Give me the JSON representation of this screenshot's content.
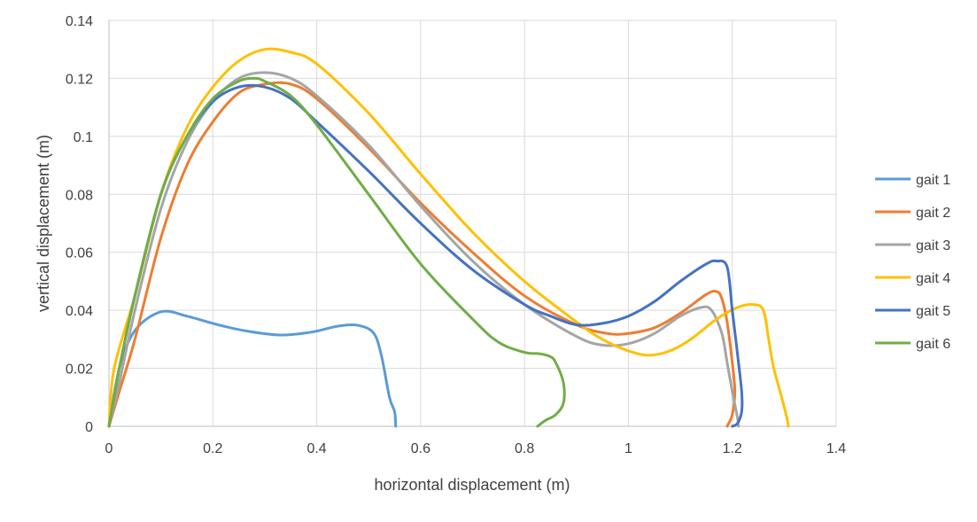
{
  "chart_data": {
    "type": "line",
    "title": "",
    "xlabel": "horizontal displacement (m)",
    "ylabel": "vertical displacement (m)",
    "xlim": [
      0,
      1.4
    ],
    "ylim": [
      0,
      0.14
    ],
    "xticks": [
      "0",
      "0.2",
      "0.4",
      "0.6",
      "0.8",
      "1",
      "1.2",
      "1.4"
    ],
    "yticks": [
      "0",
      "0.02",
      "0.04",
      "0.06",
      "0.08",
      "0.1",
      "0.12",
      "0.14"
    ],
    "grid": true,
    "legend_position": "right",
    "series": [
      {
        "name": "gait 1",
        "color": "#5b9bd5",
        "points": [
          [
            0,
            0
          ],
          [
            0.02,
            0.02
          ],
          [
            0.05,
            0.033
          ],
          [
            0.1,
            0.0395
          ],
          [
            0.15,
            0.038
          ],
          [
            0.2,
            0.0355
          ],
          [
            0.26,
            0.033
          ],
          [
            0.33,
            0.0315
          ],
          [
            0.39,
            0.0325
          ],
          [
            0.44,
            0.0345
          ],
          [
            0.48,
            0.0348
          ],
          [
            0.51,
            0.032
          ],
          [
            0.525,
            0.024
          ],
          [
            0.54,
            0.01
          ],
          [
            0.55,
            0.005
          ],
          [
            0.552,
            0
          ]
        ]
      },
      {
        "name": "gait 2",
        "color": "#ed7d31",
        "points": [
          [
            0,
            0
          ],
          [
            0.02,
            0.012
          ],
          [
            0.05,
            0.03
          ],
          [
            0.1,
            0.065
          ],
          [
            0.15,
            0.09
          ],
          [
            0.2,
            0.105
          ],
          [
            0.25,
            0.115
          ],
          [
            0.3,
            0.118
          ],
          [
            0.35,
            0.118
          ],
          [
            0.4,
            0.113
          ],
          [
            0.5,
            0.096
          ],
          [
            0.6,
            0.077
          ],
          [
            0.7,
            0.06
          ],
          [
            0.8,
            0.045
          ],
          [
            0.9,
            0.035
          ],
          [
            0.96,
            0.032
          ],
          [
            1.0,
            0.032
          ],
          [
            1.05,
            0.034
          ],
          [
            1.1,
            0.039
          ],
          [
            1.15,
            0.0455
          ],
          [
            1.17,
            0.0465
          ],
          [
            1.18,
            0.044
          ],
          [
            1.19,
            0.036
          ],
          [
            1.2,
            0.022
          ],
          [
            1.205,
            0.012
          ],
          [
            1.2,
            0.004
          ],
          [
            1.19,
            0
          ]
        ]
      },
      {
        "name": "gait 3",
        "color": "#a5a5a5",
        "points": [
          [
            0,
            0
          ],
          [
            0.02,
            0.015
          ],
          [
            0.05,
            0.04
          ],
          [
            0.1,
            0.075
          ],
          [
            0.15,
            0.098
          ],
          [
            0.2,
            0.112
          ],
          [
            0.25,
            0.12
          ],
          [
            0.3,
            0.122
          ],
          [
            0.35,
            0.12
          ],
          [
            0.4,
            0.114
          ],
          [
            0.5,
            0.097
          ],
          [
            0.6,
            0.076
          ],
          [
            0.7,
            0.057
          ],
          [
            0.8,
            0.042
          ],
          [
            0.9,
            0.031
          ],
          [
            0.95,
            0.028
          ],
          [
            1.0,
            0.0285
          ],
          [
            1.05,
            0.032
          ],
          [
            1.1,
            0.038
          ],
          [
            1.14,
            0.041
          ],
          [
            1.16,
            0.04
          ],
          [
            1.18,
            0.032
          ],
          [
            1.19,
            0.022
          ],
          [
            1.2,
            0.012
          ],
          [
            1.21,
            0.003
          ],
          [
            1.212,
            0
          ]
        ]
      },
      {
        "name": "gait 4",
        "color": "#ffc000",
        "points": [
          [
            0,
            0
          ],
          [
            0.01,
            0.02
          ],
          [
            0.05,
            0.045
          ],
          [
            0.1,
            0.08
          ],
          [
            0.15,
            0.103
          ],
          [
            0.2,
            0.117
          ],
          [
            0.25,
            0.126
          ],
          [
            0.3,
            0.13
          ],
          [
            0.35,
            0.129
          ],
          [
            0.4,
            0.125
          ],
          [
            0.5,
            0.108
          ],
          [
            0.6,
            0.087
          ],
          [
            0.7,
            0.067
          ],
          [
            0.8,
            0.05
          ],
          [
            0.9,
            0.036
          ],
          [
            0.95,
            0.03
          ],
          [
            1.0,
            0.026
          ],
          [
            1.04,
            0.0245
          ],
          [
            1.08,
            0.026
          ],
          [
            1.12,
            0.03
          ],
          [
            1.17,
            0.037
          ],
          [
            1.21,
            0.041
          ],
          [
            1.24,
            0.042
          ],
          [
            1.26,
            0.04
          ],
          [
            1.27,
            0.03
          ],
          [
            1.28,
            0.02
          ],
          [
            1.295,
            0.01
          ],
          [
            1.305,
            0.003
          ],
          [
            1.308,
            0
          ]
        ]
      },
      {
        "name": "gait 5",
        "color": "#4472c4",
        "points": [
          [
            0,
            0
          ],
          [
            0.02,
            0.02
          ],
          [
            0.05,
            0.045
          ],
          [
            0.1,
            0.08
          ],
          [
            0.15,
            0.1
          ],
          [
            0.2,
            0.112
          ],
          [
            0.25,
            0.117
          ],
          [
            0.3,
            0.117
          ],
          [
            0.35,
            0.113
          ],
          [
            0.4,
            0.105
          ],
          [
            0.5,
            0.088
          ],
          [
            0.6,
            0.07
          ],
          [
            0.7,
            0.054
          ],
          [
            0.8,
            0.042
          ],
          [
            0.85,
            0.038
          ],
          [
            0.9,
            0.035
          ],
          [
            0.95,
            0.0355
          ],
          [
            1.0,
            0.038
          ],
          [
            1.05,
            0.043
          ],
          [
            1.1,
            0.05
          ],
          [
            1.15,
            0.056
          ],
          [
            1.17,
            0.057
          ],
          [
            1.19,
            0.055
          ],
          [
            1.2,
            0.04
          ],
          [
            1.21,
            0.025
          ],
          [
            1.218,
            0.012
          ],
          [
            1.218,
            0.005
          ],
          [
            1.21,
            0.001
          ],
          [
            1.2,
            0
          ]
        ]
      },
      {
        "name": "gait 6",
        "color": "#70ad47",
        "points": [
          [
            0,
            0
          ],
          [
            0.02,
            0.02
          ],
          [
            0.05,
            0.045
          ],
          [
            0.1,
            0.08
          ],
          [
            0.15,
            0.1
          ],
          [
            0.2,
            0.113
          ],
          [
            0.25,
            0.119
          ],
          [
            0.28,
            0.12
          ],
          [
            0.3,
            0.119
          ],
          [
            0.35,
            0.114
          ],
          [
            0.4,
            0.104
          ],
          [
            0.5,
            0.08
          ],
          [
            0.6,
            0.056
          ],
          [
            0.7,
            0.037
          ],
          [
            0.75,
            0.029
          ],
          [
            0.8,
            0.0255
          ],
          [
            0.83,
            0.025
          ],
          [
            0.85,
            0.024
          ],
          [
            0.86,
            0.022
          ],
          [
            0.875,
            0.015
          ],
          [
            0.875,
            0.008
          ],
          [
            0.86,
            0.004
          ],
          [
            0.84,
            0.002
          ],
          [
            0.825,
            0
          ]
        ]
      }
    ]
  }
}
